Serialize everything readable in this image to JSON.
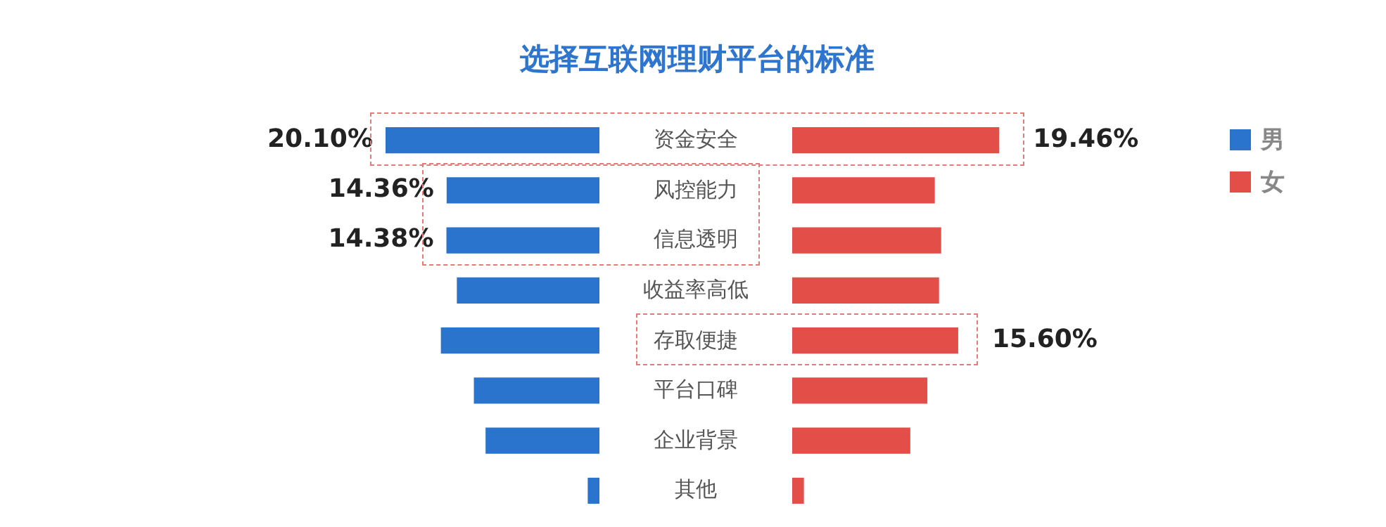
{
  "chart_data": [
    {
      "type": "bar",
      "orientation": "horizontal",
      "title": "选择互联网理财平台的标准",
      "categories": [
        "资金安全",
        "风控能力",
        "信息透明",
        "收益率高低",
        "存取便捷",
        "平台口碑",
        "企业背景",
        "其他"
      ],
      "tick_labels": "y",
      "legend": "top right",
      "series": [
        {
          "name": "男",
          "color": "#2b74cd",
          "values": [
            20.1,
            14.36,
            14.38,
            13.4,
            14.9,
            11.8,
            10.7,
            1.1
          ],
          "value_labels": [
            "20.10%",
            "14.36%",
            "14.38%",
            null,
            null,
            null,
            null,
            null
          ]
        }
      ]
    },
    {
      "type": "bar",
      "orientation": "horizontal",
      "tick_labels": false,
      "legend": "top right",
      "series": [
        {
          "name": "女",
          "color": "#e34e48",
          "values": [
            19.46,
            13.4,
            14.0,
            13.8,
            15.6,
            12.7,
            11.1,
            1.1
          ],
          "value_labels": [
            "19.46%",
            null,
            null,
            null,
            "15.60%",
            null,
            null,
            null
          ]
        }
      ]
    }
  ]
}
